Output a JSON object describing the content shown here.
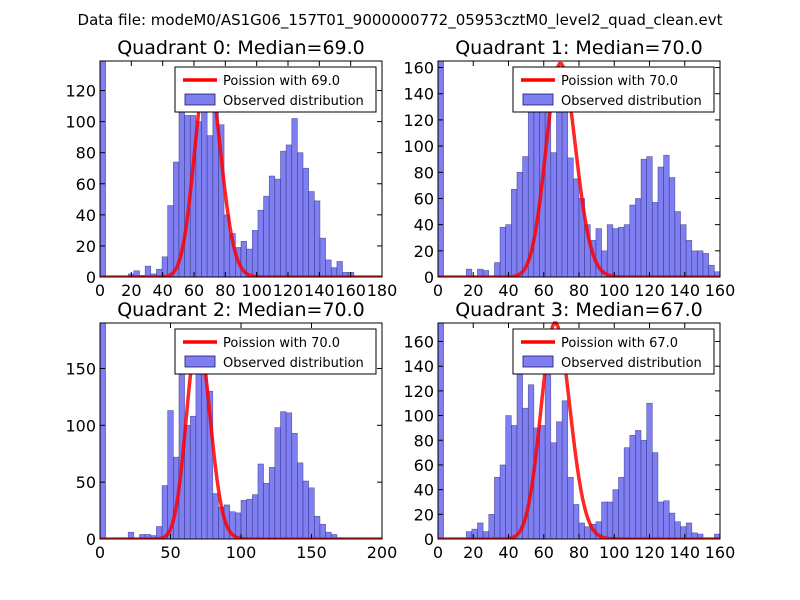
{
  "suptitle": "Data file: modeM0/AS1G06_157T01_9000000772_05953cztM0_level2_quad_clean.evt",
  "colors": {
    "bar_fill": "#7f7ff2",
    "bar_edge": "#1a1a66",
    "curve": "#ff0000",
    "frame": "#000000"
  },
  "chart_data": [
    {
      "type": "bar",
      "title": "Quadrant 0: Median=69.0",
      "legend": [
        "Poission with 69.0",
        "Observed distribution"
      ],
      "legend_position": "top-right",
      "xlim": [
        0,
        180
      ],
      "ylim": [
        0,
        139
      ],
      "xticks": [
        0,
        20,
        40,
        60,
        80,
        100,
        120,
        140,
        160,
        180
      ],
      "yticks": [
        0,
        20,
        40,
        60,
        80,
        100,
        120
      ],
      "bin_width": 3.6,
      "bins": [
        0,
        3.6,
        7.2,
        10.8,
        14.4,
        18,
        21.6,
        25.2,
        28.8,
        32.4,
        36,
        39.6,
        43.2,
        46.8,
        50.4,
        54,
        57.6,
        61.2,
        64.8,
        68.4,
        72,
        75.6,
        79.2,
        82.8,
        86.4,
        90,
        93.6,
        97.2,
        100.8,
        104.4,
        108,
        111.6,
        115.2,
        118.8,
        122.4,
        126,
        129.6,
        133.2,
        136.8,
        140.4,
        144,
        147.6,
        151.2,
        154.8,
        158.4,
        162,
        165.6,
        169.2,
        172.8,
        176.4
      ],
      "counts": [
        139,
        0,
        0,
        0,
        0,
        2,
        4,
        1,
        7,
        2,
        5,
        13,
        46,
        74,
        134,
        104,
        104,
        100,
        131,
        91,
        108,
        98,
        40,
        28,
        19,
        23,
        18,
        30,
        43,
        52,
        65,
        63,
        81,
        85,
        102,
        80,
        70,
        55,
        49,
        25,
        11,
        6,
        10,
        3,
        3,
        0,
        0,
        0,
        0,
        0
      ],
      "poisson_mean": 69.0,
      "poisson_peak": 133
    },
    {
      "type": "bar",
      "title": "Quadrant 1: Median=70.0",
      "legend": [
        "Poission with 70.0",
        "Observed distribution"
      ],
      "legend_position": "top-right",
      "xlim": [
        0,
        160
      ],
      "ylim": [
        0,
        165
      ],
      "xticks": [
        0,
        20,
        40,
        60,
        80,
        100,
        120,
        140,
        160
      ],
      "yticks": [
        0,
        20,
        40,
        60,
        80,
        100,
        120,
        140,
        160
      ],
      "bin_width": 3.2,
      "bins": [
        0,
        3.2,
        6.4,
        9.6,
        12.8,
        16,
        19.2,
        22.4,
        25.6,
        28.8,
        32,
        35.2,
        38.4,
        41.6,
        44.8,
        48,
        51.2,
        54.4,
        57.6,
        60.8,
        64,
        67.2,
        70.4,
        73.6,
        76.8,
        80,
        83.2,
        86.4,
        89.6,
        92.8,
        96,
        99.2,
        102.4,
        105.6,
        108.8,
        112,
        115.2,
        118.4,
        121.6,
        124.8,
        128,
        131.2,
        134.4,
        137.6,
        140.8,
        144,
        147.2,
        150.4,
        153.6,
        156.8
      ],
      "counts": [
        165,
        0,
        0,
        0,
        0,
        6,
        0,
        6,
        5,
        0,
        11,
        38,
        40,
        67,
        80,
        92,
        134,
        160,
        130,
        141,
        95,
        158,
        150,
        91,
        75,
        60,
        40,
        28,
        37,
        20,
        40,
        37,
        38,
        40,
        55,
        60,
        90,
        92,
        57,
        84,
        93,
        76,
        50,
        40,
        28,
        20,
        20,
        18,
        9,
        4
      ],
      "poisson_mean": 70.0,
      "poisson_peak": 163
    },
    {
      "type": "bar",
      "title": "Quadrant 2: Median=70.0",
      "legend": [
        "Poission with 70.0",
        "Observed distribution"
      ],
      "legend_position": "top-right",
      "xlim": [
        0,
        200
      ],
      "ylim": [
        0,
        190
      ],
      "xticks": [
        0,
        50,
        100,
        150,
        200
      ],
      "yticks": [
        0,
        50,
        100,
        150
      ],
      "bin_width": 4.0,
      "bins": [
        0,
        4,
        8,
        12,
        16,
        20,
        24,
        28,
        32,
        36,
        40,
        44,
        48,
        52,
        56,
        60,
        64,
        68,
        72,
        76,
        80,
        84,
        88,
        92,
        96,
        100,
        104,
        108,
        112,
        116,
        120,
        124,
        128,
        132,
        136,
        140,
        144,
        148,
        152,
        156,
        160,
        164,
        168,
        172,
        176,
        180,
        184,
        188,
        192,
        196
      ],
      "counts": [
        190,
        0,
        0,
        0,
        0,
        6,
        0,
        4,
        4,
        3,
        11,
        47,
        113,
        72,
        170,
        100,
        108,
        181,
        147,
        130,
        40,
        28,
        30,
        24,
        23,
        34,
        35,
        39,
        66,
        49,
        63,
        98,
        112,
        111,
        93,
        67,
        51,
        45,
        20,
        13,
        6,
        4,
        1,
        0,
        0,
        0,
        0,
        0,
        0,
        0
      ],
      "poisson_mean": 70.0,
      "poisson_peak": 178
    },
    {
      "type": "bar",
      "title": "Quadrant 3: Median=67.0",
      "legend": [
        "Poission with 67.0",
        "Observed distribution"
      ],
      "legend_position": "top-right",
      "xlim": [
        0,
        160
      ],
      "ylim": [
        0,
        175
      ],
      "xticks": [
        0,
        20,
        40,
        60,
        80,
        100,
        120,
        140,
        160
      ],
      "yticks": [
        0,
        20,
        40,
        60,
        80,
        100,
        120,
        140,
        160
      ],
      "bin_width": 3.2,
      "bins": [
        0,
        3.2,
        6.4,
        9.6,
        12.8,
        16,
        19.2,
        22.4,
        25.6,
        28.8,
        32,
        35.2,
        38.4,
        41.6,
        44.8,
        48,
        51.2,
        54.4,
        57.6,
        60.8,
        64,
        67.2,
        70.4,
        73.6,
        76.8,
        80,
        83.2,
        86.4,
        89.6,
        92.8,
        96,
        99.2,
        102.4,
        105.6,
        108.8,
        112,
        115.2,
        118.4,
        121.6,
        124.8,
        128,
        131.2,
        134.4,
        137.6,
        140.8,
        144,
        147.2,
        150.4,
        153.6,
        156.8
      ],
      "counts": [
        175,
        0,
        0,
        0,
        0,
        6,
        8,
        13,
        6,
        20,
        50,
        60,
        100,
        92,
        140,
        106,
        125,
        90,
        92,
        150,
        78,
        95,
        112,
        50,
        28,
        13,
        10,
        12,
        14,
        30,
        30,
        40,
        50,
        74,
        84,
        88,
        80,
        110,
        70,
        30,
        31,
        21,
        14,
        10,
        13,
        5,
        4,
        0,
        0,
        4
      ],
      "poisson_mean": 67.0,
      "poisson_peak": 175
    }
  ]
}
